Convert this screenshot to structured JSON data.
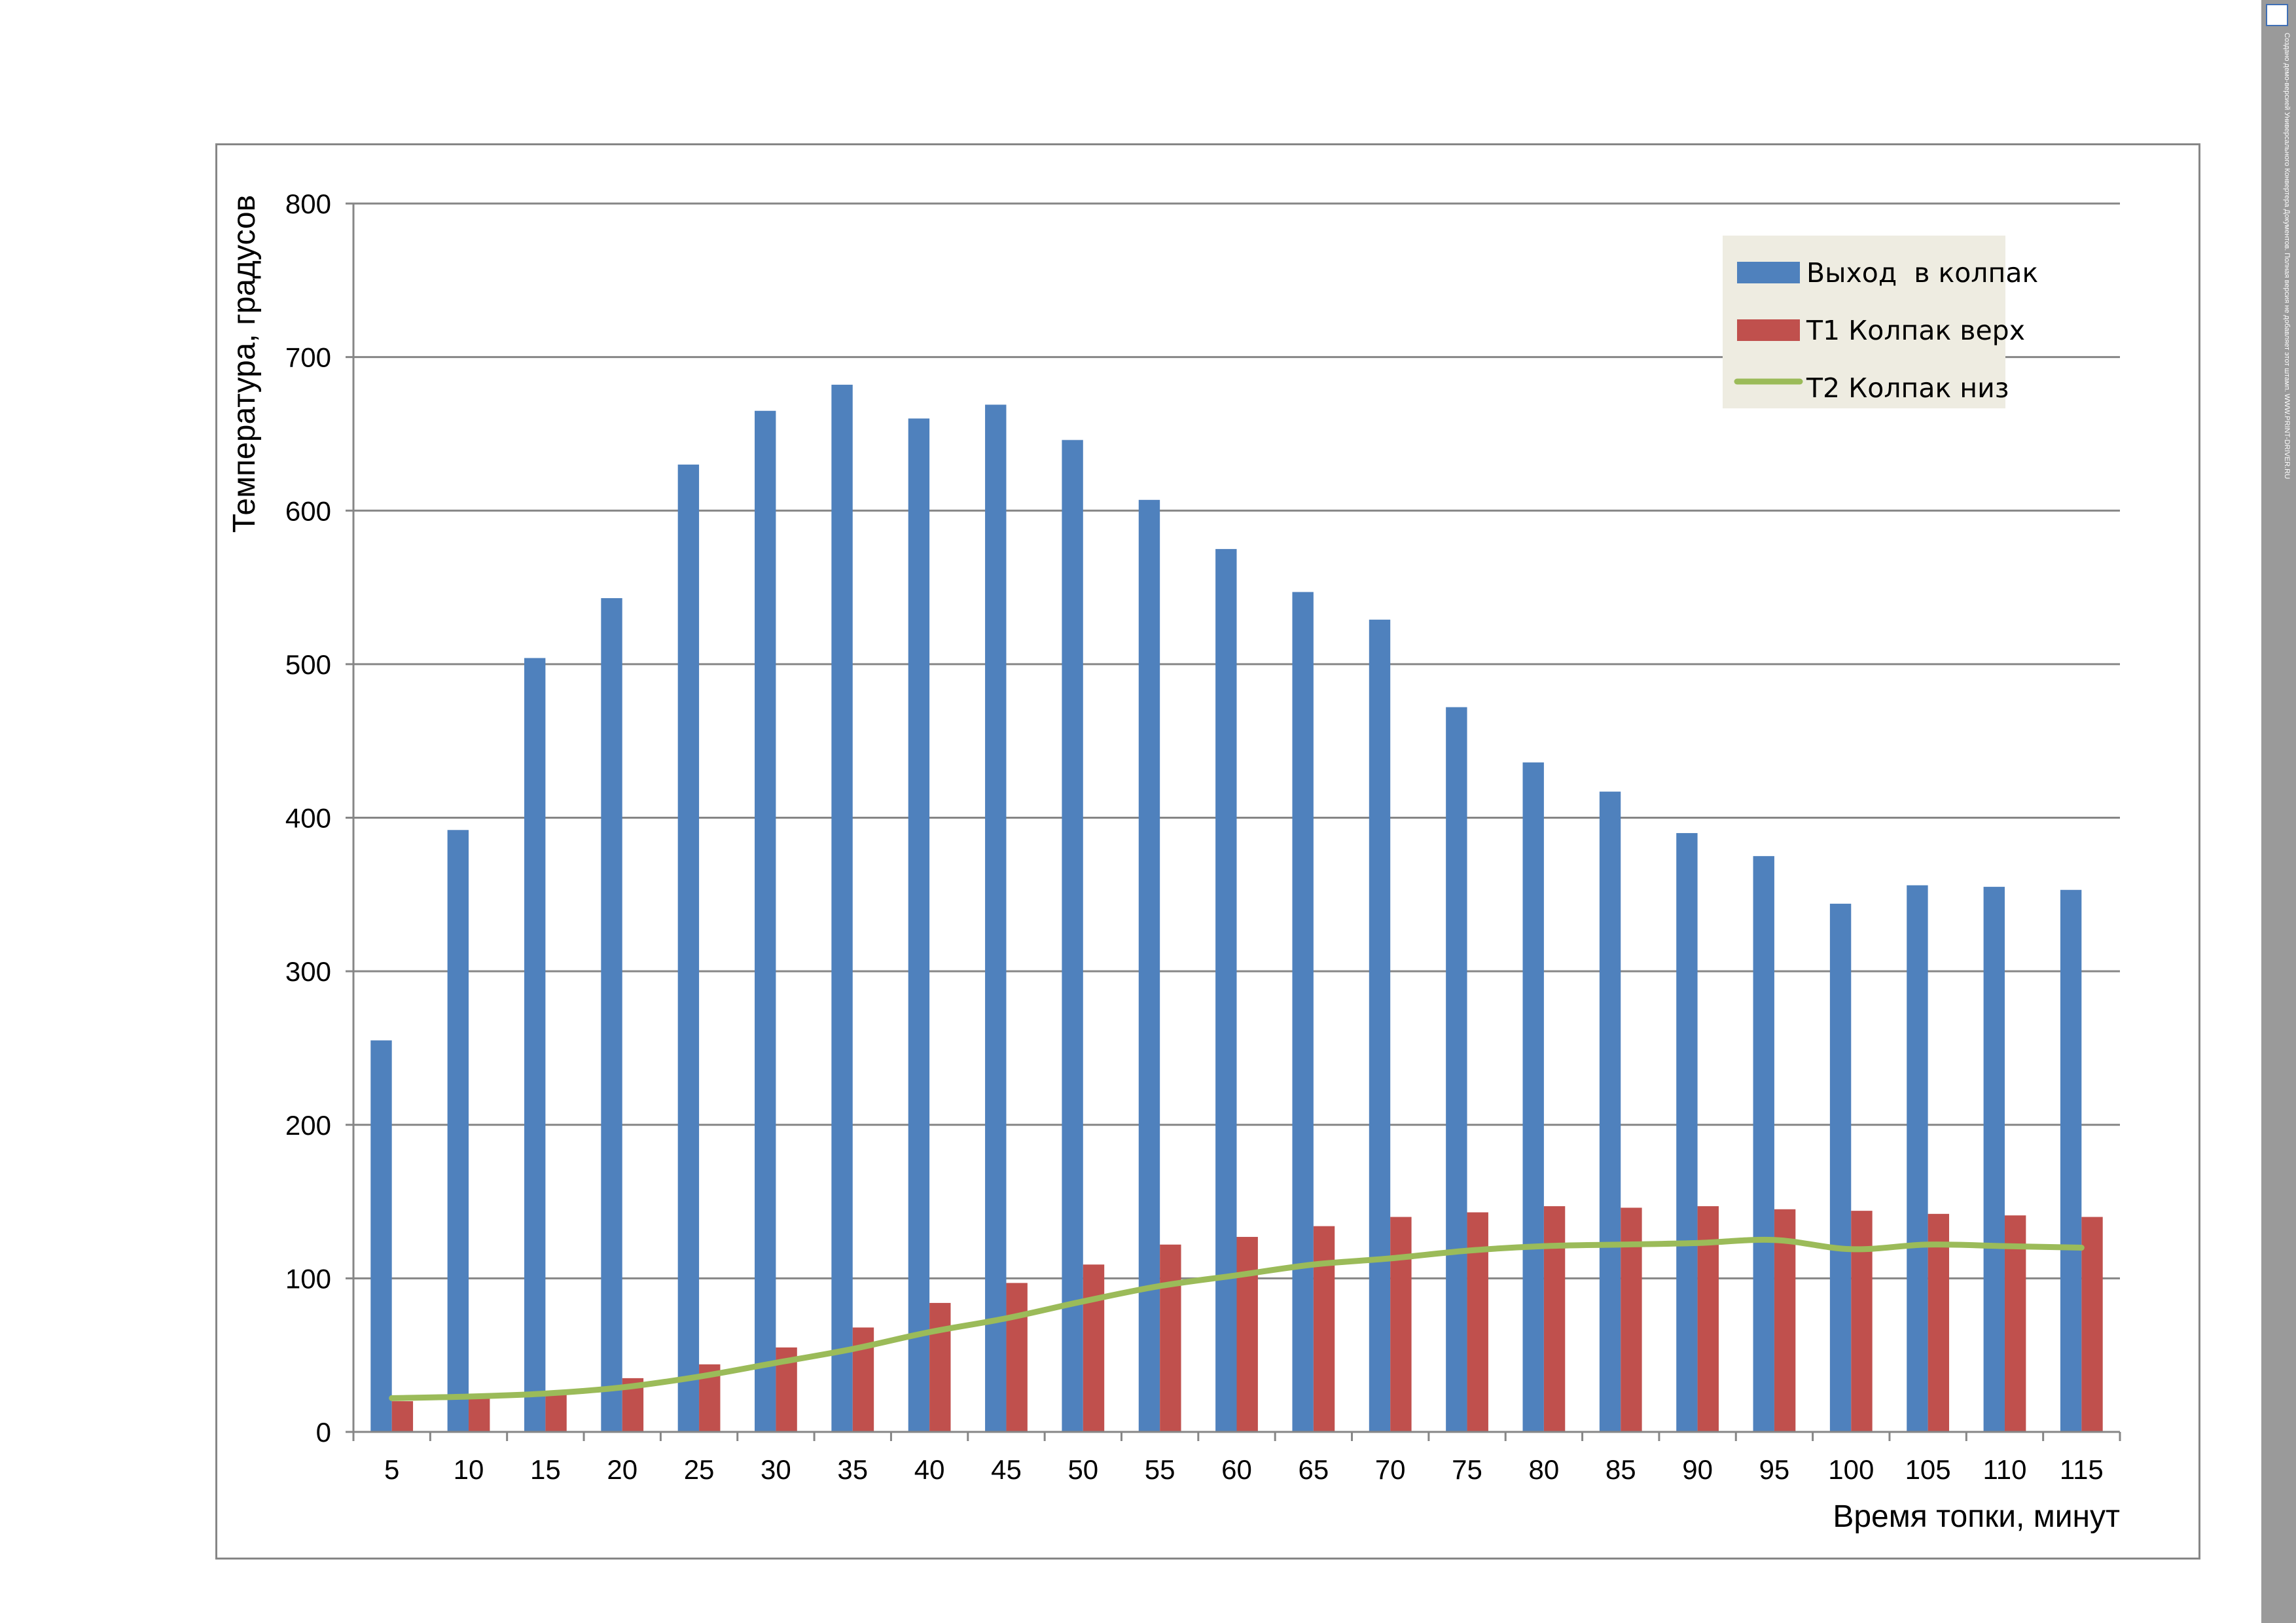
{
  "chart_data": {
    "type": "bar",
    "xlabel": "Время топки, минут",
    "ylabel": "Температура, градусов",
    "ylim": [
      0,
      800
    ],
    "yticks": [
      0,
      100,
      200,
      300,
      400,
      500,
      600,
      700,
      800
    ],
    "grid": true,
    "legend_position": "top-right",
    "categories": [
      "5",
      "10",
      "15",
      "20",
      "25",
      "30",
      "35",
      "40",
      "45",
      "50",
      "55",
      "60",
      "65",
      "70",
      "75",
      "80",
      "85",
      "90",
      "95",
      "100",
      "105",
      "110",
      "115"
    ],
    "series": [
      {
        "name": "Выход  в колпак",
        "kind": "bar",
        "color": "#4f81bd",
        "values": [
          255,
          392,
          504,
          543,
          630,
          665,
          682,
          660,
          669,
          646,
          607,
          575,
          547,
          529,
          472,
          436,
          417,
          390,
          375,
          344,
          356,
          355,
          353
        ]
      },
      {
        "name": "Т1 Колпак верх",
        "kind": "bar",
        "color": "#c0504d",
        "values": [
          20,
          22,
          25,
          35,
          44,
          55,
          68,
          84,
          97,
          109,
          122,
          127,
          134,
          140,
          143,
          147,
          146,
          147,
          145,
          144,
          142,
          141,
          140
        ]
      },
      {
        "name": "Т2 Колпак низ",
        "kind": "line",
        "color": "#9bbb59",
        "values": [
          22,
          23,
          25,
          29,
          36,
          45,
          54,
          65,
          74,
          85,
          95,
          102,
          109,
          113,
          118,
          121,
          122,
          123,
          125,
          119,
          122,
          121,
          120
        ]
      }
    ]
  },
  "side_strip": {
    "logo_icon": "document-logo-icon",
    "watermark": "Создано демо-версией Универсального Конвертера Документов. Полная версия не добавляет этот штамп. WWW.PRINT-DRIVER.RU"
  }
}
